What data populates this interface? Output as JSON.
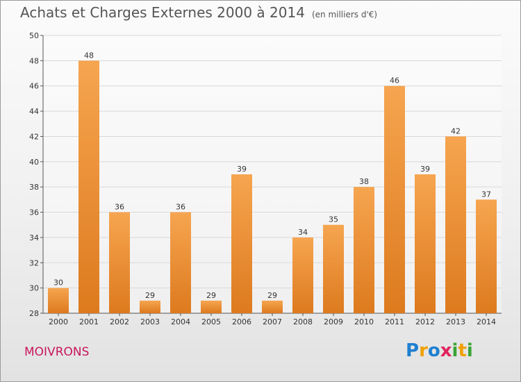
{
  "title": "Achats et Charges Externes 2000 à 2014",
  "subtitle": "(en milliers d'€)",
  "commune": "MOIVRONS",
  "logo": {
    "letters": [
      "P",
      "r",
      "o",
      "x",
      "i",
      "t",
      "i"
    ],
    "colors": [
      "#1e7fd0",
      "#f0a000",
      "#1e7fd0",
      "#e0245e",
      "#3aa335",
      "#f0a000",
      "#3aa335"
    ]
  },
  "colors": {
    "bar_light": "#f6a550",
    "bar_dark": "#dd7a1e",
    "grid": "#d8d8d8",
    "axis": "#555555"
  },
  "chart_data": {
    "type": "bar",
    "categories": [
      "2000",
      "2001",
      "2002",
      "2003",
      "2004",
      "2005",
      "2006",
      "2007",
      "2008",
      "2009",
      "2010",
      "2011",
      "2012",
      "2013",
      "2014"
    ],
    "values": [
      30,
      48,
      36,
      29,
      36,
      29,
      39,
      29,
      34,
      35,
      38,
      46,
      39,
      42,
      37
    ],
    "value_labels": [
      "30",
      "48",
      "36",
      "29",
      "36",
      "29",
      "39",
      "29",
      "34",
      "35",
      "38",
      "46",
      "39",
      "42",
      "37"
    ],
    "title": "Achats et Charges Externes 2000 à 2014",
    "xlabel": "",
    "ylabel": "",
    "ylim": [
      28,
      50
    ],
    "yticks": [
      28,
      30,
      32,
      34,
      36,
      38,
      40,
      42,
      44,
      46,
      48,
      50
    ],
    "ytick_labels": [
      "28",
      "30",
      "32",
      "34",
      "36",
      "38",
      "40",
      "42",
      "44",
      "46",
      "48",
      "50"
    ],
    "grid": true,
    "legend": "none"
  }
}
